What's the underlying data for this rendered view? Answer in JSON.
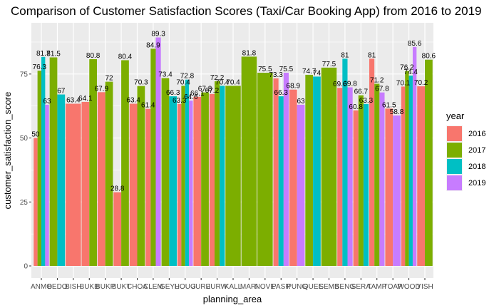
{
  "chart_data": {
    "type": "bar",
    "title": "Comparison of Customer Satisfaction Scores (Taxi/Car Booking App) from 2016 to 2019",
    "xlabel": "planning_area",
    "ylabel": "customer_satisfaction_score",
    "ylim": [
      0,
      92
    ],
    "yticks": [
      0,
      25,
      50,
      75
    ],
    "grid": true,
    "legend": {
      "title": "year",
      "position": "right"
    },
    "categories": [
      "ANMO",
      "BEDO",
      "BISH",
      "BUKB",
      "BUKP",
      "BUKT",
      "CHOA",
      "CLEM",
      "GEYL",
      "HOUG",
      "JURE",
      "JURW",
      "KALL",
      "MARI",
      "NOVE",
      "PASR",
      "PUNG",
      "QUEE",
      "SEMB",
      "SENG",
      "SERA",
      "TAMP",
      "TOAP",
      "WOOD",
      "YISH"
    ],
    "series": [
      {
        "name": "2016",
        "color": "#F8766D",
        "values": [
          50,
          null,
          63.4,
          64.1,
          67.9,
          28.8,
          63.4,
          61.4,
          null,
          63.3,
          66.1,
          67.2,
          null,
          null,
          null,
          73.3,
          68.9,
          null,
          null,
          69.6,
          60.8,
          81,
          61.5,
          70.1,
          70.2
        ]
      },
      {
        "name": "2017",
        "color": "#7CAE00",
        "values": [
          76.3,
          81.5,
          null,
          80.8,
          72,
          80.4,
          70.3,
          84.9,
          73.4,
          70.4,
          67.8,
          72.2,
          70.4,
          81.8,
          75.5,
          null,
          null,
          74.7,
          77.5,
          null,
          66.7,
          71.2,
          null,
          76.2,
          80.6
        ]
      },
      {
        "name": "2018",
        "color": "#00BFC4",
        "values": [
          81.7,
          67,
          null,
          null,
          null,
          null,
          null,
          null,
          66.3,
          72.8,
          null,
          70.4,
          null,
          null,
          null,
          66.3,
          null,
          74,
          null,
          81,
          63.3,
          null,
          null,
          74.4,
          null
        ]
      },
      {
        "name": "2019",
        "color": "#C77CFF",
        "values": [
          63,
          null,
          null,
          null,
          null,
          null,
          null,
          89.3,
          null,
          64.6,
          null,
          null,
          null,
          null,
          null,
          75.5,
          63,
          null,
          null,
          69.8,
          null,
          67.8,
          58.8,
          85.6,
          null
        ]
      }
    ]
  }
}
